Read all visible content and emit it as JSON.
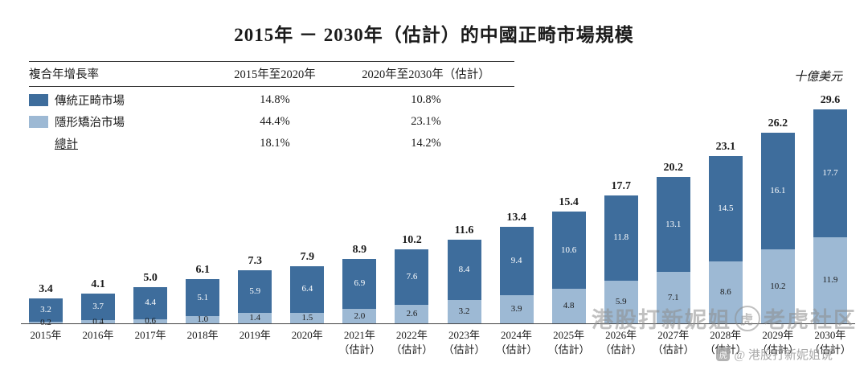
{
  "title": "2015年 － 2030年（估計）的中國正畸市場規模",
  "unit_label": "十億美元",
  "legend": {
    "header": "複合年增長率",
    "col1": "2015年至2020年",
    "col2": "2020年至2030年（估計）",
    "rows": [
      {
        "label": "傳統正畸市場",
        "cagr1": "14.8%",
        "cagr2": "10.8%",
        "color": "#3e6d9c"
      },
      {
        "label": "隱形矯治市場",
        "cagr1": "44.4%",
        "cagr2": "23.1%",
        "color": "#9db9d4"
      },
      {
        "label": "總計",
        "cagr1": "18.1%",
        "cagr2": "14.2%"
      }
    ]
  },
  "chart_data": {
    "type": "bar",
    "stacked": true,
    "title": "2015年 － 2030年（估計）的中國正畸市場規模",
    "ylabel": "十億美元",
    "ylim": [
      0,
      30
    ],
    "grid": false,
    "legend_position": "top-left",
    "categories": [
      {
        "year": "2015年"
      },
      {
        "year": "2016年"
      },
      {
        "year": "2017年"
      },
      {
        "year": "2018年"
      },
      {
        "year": "2019年"
      },
      {
        "year": "2020年"
      },
      {
        "year": "2021年",
        "note": "（估計）"
      },
      {
        "year": "2022年",
        "note": "（估計）"
      },
      {
        "year": "2023年",
        "note": "（估計）"
      },
      {
        "year": "2024年",
        "note": "（估計）"
      },
      {
        "year": "2025年",
        "note": "（估計）"
      },
      {
        "year": "2026年",
        "note": "（估計）"
      },
      {
        "year": "2027年",
        "note": "（估計）"
      },
      {
        "year": "2028年",
        "note": "（估計）"
      },
      {
        "year": "2029年",
        "note": "（估計）"
      },
      {
        "year": "2030年",
        "note": "（估計）"
      }
    ],
    "series": [
      {
        "name": "隱形矯治市場",
        "color": "#9db9d4",
        "values": [
          0.2,
          0.4,
          0.6,
          1.0,
          1.4,
          1.5,
          2.0,
          2.6,
          3.2,
          3.9,
          4.8,
          5.9,
          7.1,
          8.6,
          10.2,
          11.9
        ]
      },
      {
        "name": "傳統正畸市場",
        "color": "#3e6d9c",
        "values": [
          3.2,
          3.7,
          4.4,
          5.1,
          5.9,
          6.4,
          6.9,
          7.6,
          8.4,
          9.4,
          10.6,
          11.8,
          13.1,
          14.5,
          16.1,
          17.7
        ]
      }
    ],
    "totals": [
      3.4,
      4.1,
      5.0,
      6.1,
      7.3,
      7.9,
      8.9,
      10.2,
      11.6,
      13.4,
      15.4,
      17.7,
      20.2,
      23.1,
      26.2,
      29.6
    ]
  },
  "watermarks": {
    "big_text": "港股打新妮姐",
    "tiger_glyph": "虎",
    "community": "老虎社区",
    "small_text": "@ 港股打新妮姐说"
  }
}
